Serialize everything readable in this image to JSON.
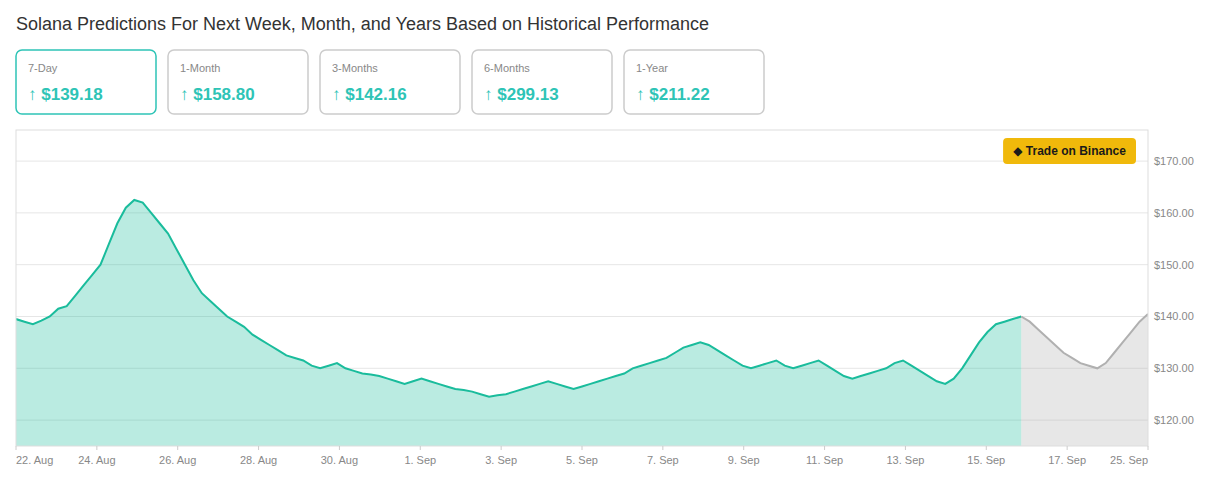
{
  "chart_data": {
    "type": "area",
    "title": "Solana Predictions For Next Week, Month, and Years Based on Historical Performance",
    "annotations": [
      {
        "label": "7-Day",
        "text": "↑ $139.18",
        "color": "#2ec4b6"
      },
      {
        "label": "1-Month",
        "text": "↑ $158.80",
        "color": "#cccccc"
      },
      {
        "label": "3-Months",
        "text": "↑ $142.16",
        "color": "#cccccc"
      },
      {
        "label": "6-Months",
        "text": "↑ $299.13",
        "color": "#cccccc"
      },
      {
        "label": "1-Year",
        "text": "↑ $211.22",
        "color": "#cccccc"
      },
      {
        "text": "◆  Trade on Binance",
        "color": "#F0B90B"
      }
    ],
    "series": [
      {
        "color": "#1abc9c",
        "x": [
          0,
          1,
          2,
          3,
          4,
          5,
          6,
          7,
          8,
          9,
          10,
          11,
          12,
          13,
          14,
          15,
          16,
          17,
          18,
          19,
          20,
          21,
          22,
          23,
          24,
          25,
          26,
          27,
          28,
          29,
          30,
          31,
          32,
          33,
          34,
          35,
          36,
          37,
          38,
          39,
          40,
          41,
          42,
          43,
          44,
          45,
          46,
          47,
          48,
          49,
          50,
          51,
          52,
          53,
          54,
          55,
          56,
          57,
          58,
          59,
          60,
          61,
          62,
          63,
          64,
          65,
          66,
          67,
          68,
          69,
          70,
          71,
          72,
          73,
          74,
          75,
          76,
          77,
          78,
          79,
          80,
          81,
          82,
          83,
          84,
          85,
          86,
          87,
          88,
          89,
          90,
          91,
          92,
          93,
          94,
          95,
          96,
          97,
          98,
          99,
          100,
          101,
          102,
          103,
          104,
          105,
          106,
          107,
          108,
          109,
          110,
          111,
          112,
          113,
          114,
          115,
          116,
          117,
          118,
          119
        ],
        "values": [
          139.5,
          139.0,
          138.5,
          139.2,
          140.0,
          141.5,
          142.0,
          144.0,
          146.0,
          148.0,
          150.0,
          154.0,
          158.0,
          161.0,
          162.5,
          162.0,
          160.0,
          158.0,
          156.0,
          153.0,
          150.0,
          147.0,
          144.5,
          143.0,
          141.5,
          140.0,
          139.0,
          138.0,
          136.5,
          135.5,
          134.5,
          133.5,
          132.5,
          132.0,
          131.5,
          130.5,
          130.0,
          130.5,
          131.0,
          130.0,
          129.5,
          129.0,
          128.8,
          128.5,
          128.0,
          127.5,
          127.0,
          127.5,
          128.0,
          127.5,
          127.0,
          126.5,
          126.0,
          125.8,
          125.5,
          125.0,
          124.5,
          124.8,
          125.0,
          125.5,
          126.0,
          126.5,
          127.0,
          127.5,
          127.0,
          126.5,
          126.0,
          126.5,
          127.0,
          127.5,
          128.0,
          128.5,
          129.0,
          130.0,
          130.5,
          131.0,
          131.5,
          132.0,
          133.0,
          134.0,
          134.5,
          135.0,
          134.5,
          133.5,
          132.5,
          131.5,
          130.5,
          130.0,
          130.5,
          131.0,
          131.5,
          130.5,
          130.0,
          130.5,
          131.0,
          131.5,
          130.5,
          129.5,
          128.5,
          128.0,
          128.5,
          129.0,
          129.5,
          130.0,
          131.0,
          131.5,
          130.5,
          129.5,
          128.5,
          127.5,
          127.0,
          128.0,
          130.0,
          132.5,
          135.0,
          137.0,
          138.5,
          139.0,
          139.5,
          140.0
        ]
      },
      {
        "color": "#b0b0b0",
        "x": [
          119,
          120,
          121,
          122,
          123,
          124,
          125,
          126,
          127,
          128,
          129,
          130,
          131,
          132,
          133,
          134
        ],
        "values": [
          140.0,
          139.0,
          137.5,
          136.0,
          134.5,
          133.0,
          132.0,
          131.0,
          130.5,
          130.0,
          131.0,
          133.0,
          135.0,
          137.0,
          139.0,
          140.5
        ]
      }
    ],
    "xlim": [
      0,
      134
    ],
    "xticks": [
      {
        "value": 0,
        "label": "22. Aug"
      },
      {
        "value": 9.571428571428571,
        "label": "24. Aug"
      },
      {
        "value": 19.142857142857142,
        "label": "26. Aug"
      },
      {
        "value": 28.714285714285715,
        "label": "28. Aug"
      },
      {
        "value": 38.285714285714285,
        "label": "30. Aug"
      },
      {
        "value": 47.857142857142854,
        "label": "1. Sep"
      },
      {
        "value": 57.42857142857143,
        "label": "3. Sep"
      },
      {
        "value": 67,
        "label": "5. Sep"
      },
      {
        "value": 76.57142857142857,
        "label": "7. Sep"
      },
      {
        "value": 86.14285714285714,
        "label": "9. Sep"
      },
      {
        "value": 95.71428571428571,
        "label": "11. Sep"
      },
      {
        "value": 105.28571428571429,
        "label": "13. Sep"
      },
      {
        "value": 114.85714285714286,
        "label": "15. Sep"
      },
      {
        "value": 124.42857142857143,
        "label": "17. Sep"
      },
      {
        "value": 134,
        "label": "25. Sep"
      }
    ],
    "ylim": [
      115,
      176
    ],
    "yticks": [
      {
        "value": 120,
        "label": "$120.00"
      },
      {
        "value": 130,
        "label": "$130.00"
      },
      {
        "value": 140,
        "label": "$140.00"
      },
      {
        "value": 150,
        "label": "$150.00"
      },
      {
        "value": 160,
        "label": "$160.00"
      },
      {
        "value": 170,
        "label": "$170.00"
      }
    ],
    "grid": true
  }
}
